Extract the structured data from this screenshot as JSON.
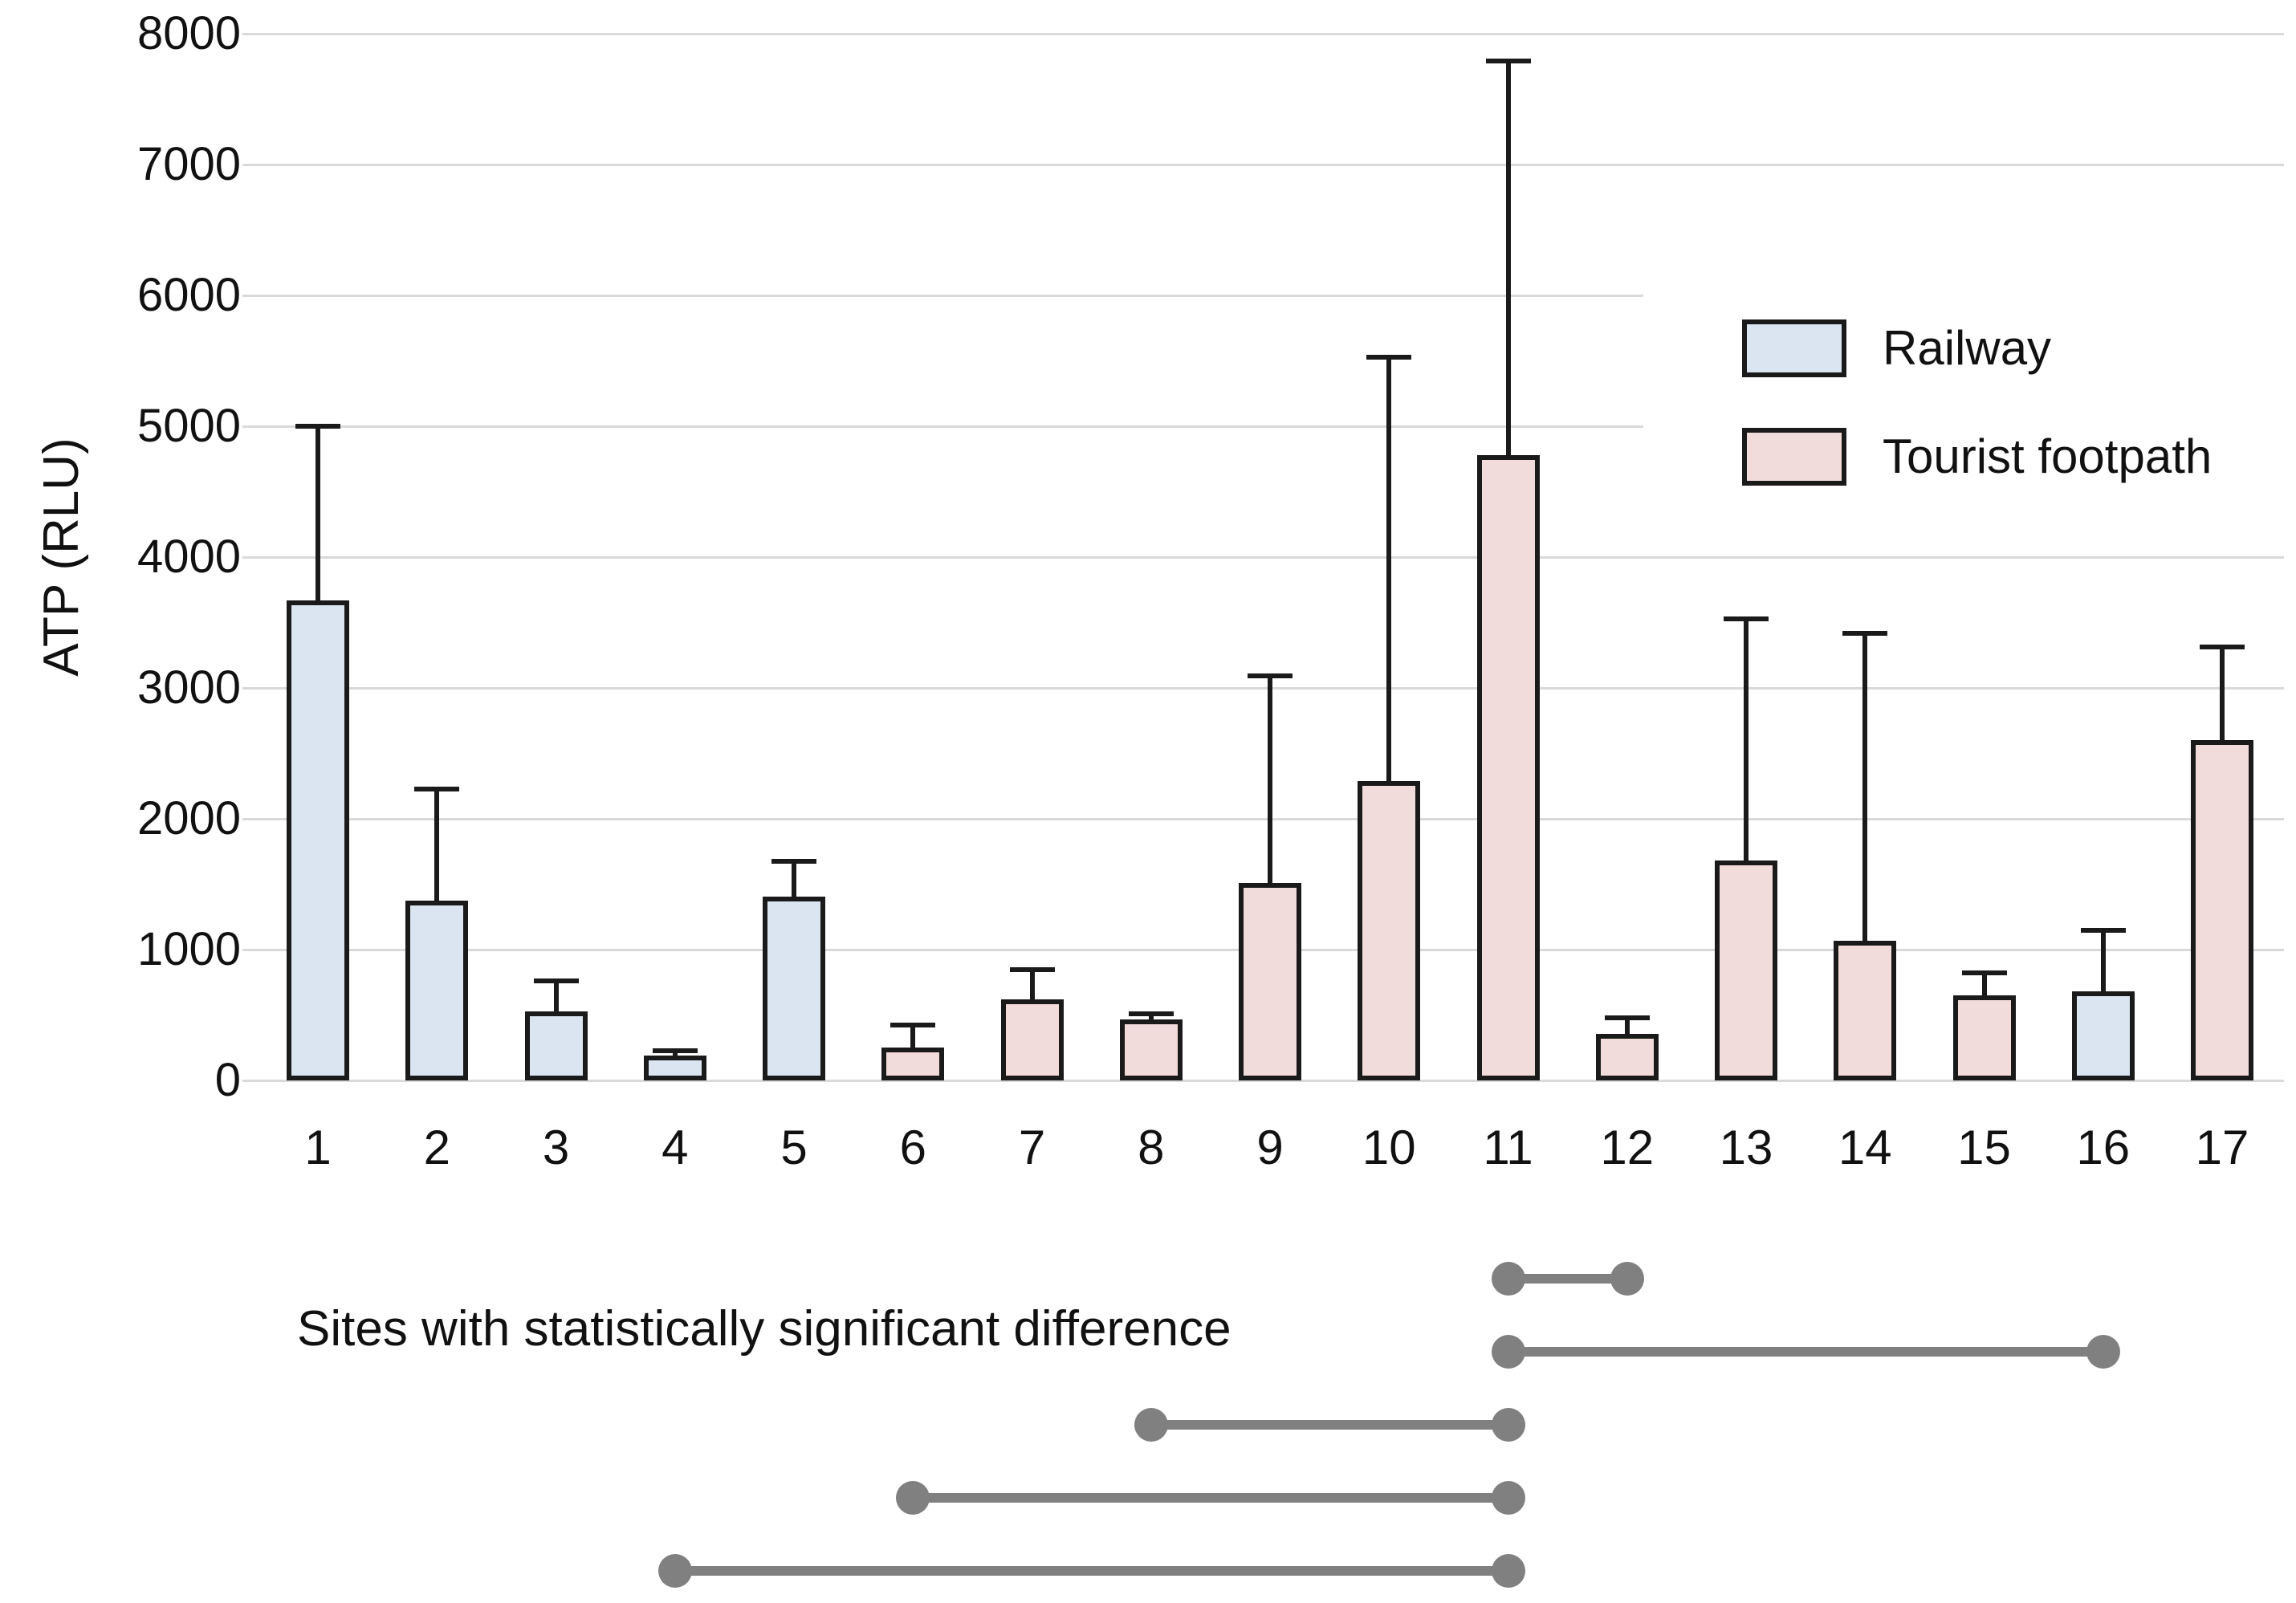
{
  "chart_data": {
    "type": "bar",
    "title": "",
    "ylabel": "ATP (RLU)",
    "xlabel": "",
    "ylim": [
      0,
      8000
    ],
    "ytick_step": 1000,
    "ytick_labels": [
      "0",
      "1000",
      "2000",
      "3000",
      "4000",
      "5000",
      "6000",
      "7000",
      "8000"
    ],
    "grid": true,
    "gridline_color": "#d9d9d9",
    "categories": [
      "1",
      "2",
      "3",
      "4",
      "5",
      "6",
      "7",
      "8",
      "9",
      "10",
      "11",
      "12",
      "13",
      "14",
      "15",
      "16",
      "17"
    ],
    "series": [
      {
        "name": "ATP (RLU)",
        "values": [
          3670,
          1375,
          530,
          190,
          1405,
          250,
          620,
          465,
          1510,
          2290,
          4780,
          355,
          1680,
          1070,
          650,
          680,
          2600
        ],
        "error_plus": [
          1330,
          855,
          230,
          40,
          270,
          175,
          225,
          45,
          1580,
          3240,
          3010,
          125,
          1850,
          2350,
          170,
          470,
          710
        ]
      }
    ],
    "point_groups": [
      "Railway",
      "Railway",
      "Railway",
      "Railway",
      "Railway",
      "Tourist footpath",
      "Tourist footpath",
      "Tourist footpath",
      "Tourist footpath",
      "Tourist footpath",
      "Tourist footpath",
      "Tourist footpath",
      "Tourist footpath",
      "Tourist footpath",
      "Tourist footpath",
      "Railway",
      "Tourist footpath"
    ],
    "group_colors": {
      "Railway": "#dbe5f1",
      "Tourist footpath": "#f2dcdb"
    },
    "bar_border_color": "#1a1a1a",
    "legend_position": "top-right",
    "legend": [
      {
        "label": "Railway",
        "color": "#dbe5f1"
      },
      {
        "label": "Tourist footpath",
        "color": "#f2dcdb"
      }
    ],
    "caption": "Sites with statistically significant difference",
    "significance_connector_color": "#808080",
    "significant_pairs": [
      [
        "11",
        "12"
      ],
      [
        "11",
        "16"
      ],
      [
        "8",
        "11"
      ],
      [
        "6",
        "11"
      ],
      [
        "4",
        "11"
      ]
    ]
  }
}
